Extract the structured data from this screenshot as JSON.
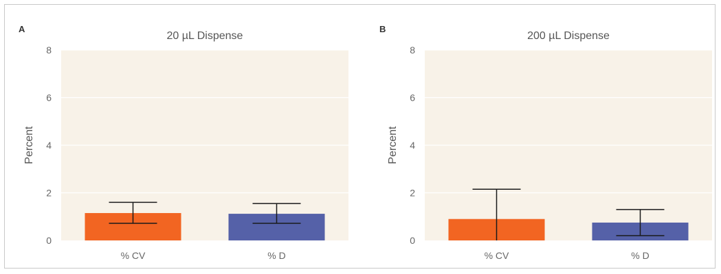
{
  "chart_data": [
    {
      "panel": "A",
      "type": "bar",
      "title": "20 µL Dispense",
      "ylabel": "Percent",
      "xlabel": "",
      "ylim": [
        0,
        8
      ],
      "yticks": [
        0,
        2,
        4,
        6,
        8
      ],
      "categories": [
        "% CV",
        "% D"
      ],
      "values": [
        1.15,
        1.12
      ],
      "error_low": [
        0.72,
        0.72
      ],
      "error_high": [
        1.6,
        1.55
      ],
      "colors": [
        "#f26522",
        "#5561a8"
      ],
      "plot_background": "#f8f2e8",
      "grid": true
    },
    {
      "panel": "B",
      "type": "bar",
      "title": "200 µL Dispense",
      "ylabel": "Percent",
      "xlabel": "",
      "ylim": [
        0,
        8
      ],
      "yticks": [
        0,
        2,
        4,
        6,
        8
      ],
      "categories": [
        "% CV",
        "% D"
      ],
      "values": [
        0.9,
        0.75
      ],
      "error_low": [
        0.0,
        0.2
      ],
      "error_high": [
        2.15,
        1.3
      ],
      "colors": [
        "#f26522",
        "#5561a8"
      ],
      "plot_background": "#f8f2e8",
      "grid": true
    }
  ]
}
